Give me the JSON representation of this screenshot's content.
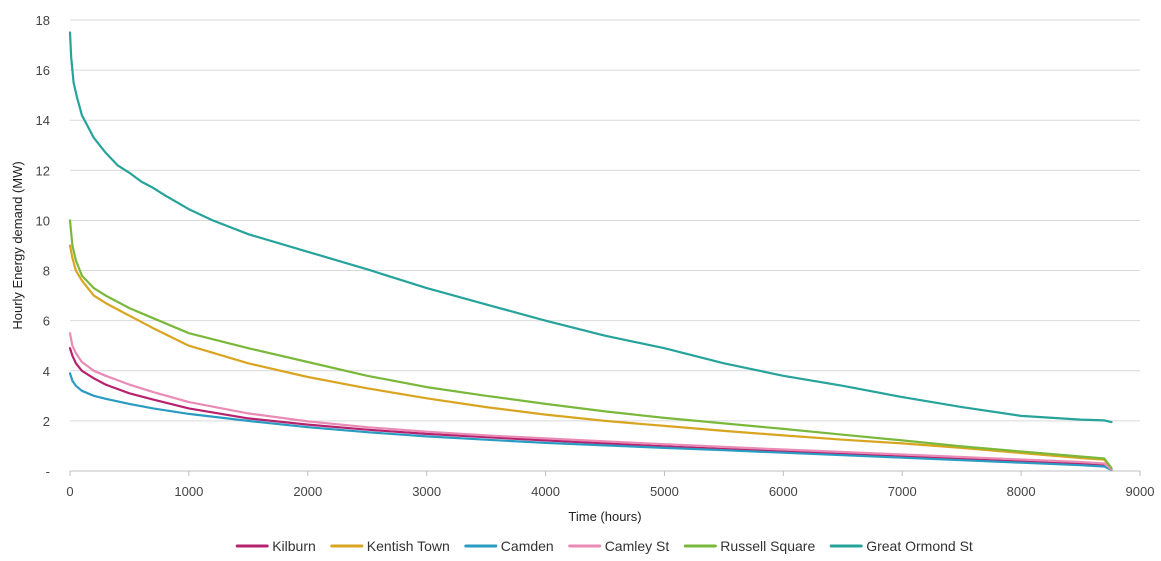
{
  "chart_data": {
    "type": "line",
    "title": "",
    "xlabel": "Time (hours)",
    "ylabel": "Hourly Energy demand (MW)",
    "xlim": [
      0,
      9000
    ],
    "ylim": [
      0,
      18
    ],
    "x_ticks": [
      0,
      1000,
      2000,
      3000,
      4000,
      5000,
      6000,
      7000,
      8000,
      9000
    ],
    "x_tick_labels": [
      "0",
      "1000",
      "2000",
      "3000",
      "4000",
      "5000",
      "6000",
      "7000",
      "8000",
      "9000"
    ],
    "y_ticks": [
      0,
      2,
      4,
      6,
      8,
      10,
      12,
      14,
      16,
      18
    ],
    "y_tick_labels": [
      "-",
      "2",
      "4",
      "6",
      "8",
      "10",
      "12",
      "14",
      "16",
      "18"
    ],
    "grid": "horizontal",
    "legend_position": "bottom",
    "series": [
      {
        "name": "Kilburn",
        "color": "#b5226e",
        "points": [
          [
            0,
            4.9
          ],
          [
            20,
            4.6
          ],
          [
            50,
            4.3
          ],
          [
            100,
            4.0
          ],
          [
            200,
            3.7
          ],
          [
            300,
            3.45
          ],
          [
            500,
            3.1
          ],
          [
            700,
            2.85
          ],
          [
            1000,
            2.5
          ],
          [
            1500,
            2.1
          ],
          [
            2000,
            1.85
          ],
          [
            2500,
            1.65
          ],
          [
            3000,
            1.48
          ],
          [
            3500,
            1.35
          ],
          [
            4000,
            1.22
          ],
          [
            4500,
            1.1
          ],
          [
            5000,
            0.98
          ],
          [
            5500,
            0.88
          ],
          [
            6000,
            0.78
          ],
          [
            6500,
            0.68
          ],
          [
            7000,
            0.58
          ],
          [
            7500,
            0.48
          ],
          [
            8000,
            0.38
          ],
          [
            8500,
            0.28
          ],
          [
            8700,
            0.22
          ],
          [
            8760,
            0.05
          ]
        ]
      },
      {
        "name": "Kentish Town",
        "color": "#d9a521",
        "points": [
          [
            0,
            9.0
          ],
          [
            20,
            8.5
          ],
          [
            50,
            8.0
          ],
          [
            100,
            7.6
          ],
          [
            200,
            7.0
          ],
          [
            300,
            6.7
          ],
          [
            500,
            6.2
          ],
          [
            700,
            5.7
          ],
          [
            1000,
            5.0
          ],
          [
            1500,
            4.3
          ],
          [
            2000,
            3.75
          ],
          [
            2500,
            3.3
          ],
          [
            3000,
            2.9
          ],
          [
            3500,
            2.55
          ],
          [
            4000,
            2.25
          ],
          [
            4500,
            2.0
          ],
          [
            5000,
            1.8
          ],
          [
            5500,
            1.6
          ],
          [
            6000,
            1.42
          ],
          [
            6500,
            1.25
          ],
          [
            7000,
            1.1
          ],
          [
            7500,
            0.92
          ],
          [
            8000,
            0.72
          ],
          [
            8500,
            0.52
          ],
          [
            8700,
            0.45
          ],
          [
            8760,
            0.1
          ]
        ]
      },
      {
        "name": "Camden",
        "color": "#2a9bc2",
        "points": [
          [
            0,
            3.9
          ],
          [
            20,
            3.6
          ],
          [
            50,
            3.4
          ],
          [
            100,
            3.2
          ],
          [
            200,
            3.0
          ],
          [
            300,
            2.88
          ],
          [
            500,
            2.68
          ],
          [
            700,
            2.5
          ],
          [
            1000,
            2.28
          ],
          [
            1500,
            2.0
          ],
          [
            2000,
            1.75
          ],
          [
            2500,
            1.55
          ],
          [
            3000,
            1.38
          ],
          [
            3500,
            1.25
          ],
          [
            4000,
            1.12
          ],
          [
            4500,
            1.02
          ],
          [
            5000,
            0.92
          ],
          [
            5500,
            0.83
          ],
          [
            6000,
            0.73
          ],
          [
            6500,
            0.63
          ],
          [
            7000,
            0.53
          ],
          [
            7500,
            0.43
          ],
          [
            8000,
            0.33
          ],
          [
            8500,
            0.23
          ],
          [
            8700,
            0.18
          ],
          [
            8760,
            0.04
          ]
        ]
      },
      {
        "name": "Camley St",
        "color": "#e98bb5",
        "points": [
          [
            0,
            5.5
          ],
          [
            20,
            5.0
          ],
          [
            50,
            4.7
          ],
          [
            100,
            4.35
          ],
          [
            200,
            4.0
          ],
          [
            300,
            3.8
          ],
          [
            500,
            3.45
          ],
          [
            700,
            3.15
          ],
          [
            1000,
            2.75
          ],
          [
            1500,
            2.3
          ],
          [
            2000,
            1.98
          ],
          [
            2500,
            1.75
          ],
          [
            3000,
            1.57
          ],
          [
            3500,
            1.42
          ],
          [
            4000,
            1.3
          ],
          [
            4500,
            1.18
          ],
          [
            5000,
            1.07
          ],
          [
            5500,
            0.96
          ],
          [
            6000,
            0.86
          ],
          [
            6500,
            0.76
          ],
          [
            7000,
            0.66
          ],
          [
            7500,
            0.56
          ],
          [
            8000,
            0.46
          ],
          [
            8500,
            0.36
          ],
          [
            8700,
            0.3
          ],
          [
            8760,
            0.06
          ]
        ]
      },
      {
        "name": "Russell Square",
        "color": "#7ab83b",
        "points": [
          [
            0,
            10.0
          ],
          [
            20,
            9.0
          ],
          [
            50,
            8.4
          ],
          [
            100,
            7.8
          ],
          [
            200,
            7.3
          ],
          [
            300,
            7.0
          ],
          [
            500,
            6.5
          ],
          [
            700,
            6.1
          ],
          [
            1000,
            5.5
          ],
          [
            1500,
            4.9
          ],
          [
            2000,
            4.35
          ],
          [
            2500,
            3.8
          ],
          [
            3000,
            3.35
          ],
          [
            3500,
            3.0
          ],
          [
            4000,
            2.68
          ],
          [
            4500,
            2.38
          ],
          [
            5000,
            2.12
          ],
          [
            5500,
            1.9
          ],
          [
            6000,
            1.68
          ],
          [
            6500,
            1.45
          ],
          [
            7000,
            1.22
          ],
          [
            7500,
            0.98
          ],
          [
            8000,
            0.78
          ],
          [
            8500,
            0.58
          ],
          [
            8700,
            0.5
          ],
          [
            8760,
            0.12
          ]
        ]
      },
      {
        "name": "Great Ormond St",
        "color": "#26a39a",
        "points": [
          [
            0,
            17.5
          ],
          [
            10,
            16.5
          ],
          [
            30,
            15.5
          ],
          [
            60,
            14.9
          ],
          [
            100,
            14.2
          ],
          [
            200,
            13.3
          ],
          [
            300,
            12.7
          ],
          [
            400,
            12.2
          ],
          [
            500,
            11.9
          ],
          [
            600,
            11.55
          ],
          [
            700,
            11.3
          ],
          [
            800,
            11.0
          ],
          [
            1000,
            10.45
          ],
          [
            1200,
            10.0
          ],
          [
            1500,
            9.45
          ],
          [
            2000,
            8.75
          ],
          [
            2500,
            8.05
          ],
          [
            3000,
            7.3
          ],
          [
            3500,
            6.65
          ],
          [
            4000,
            6.0
          ],
          [
            4500,
            5.4
          ],
          [
            5000,
            4.9
          ],
          [
            5500,
            4.3
          ],
          [
            6000,
            3.8
          ],
          [
            6500,
            3.4
          ],
          [
            7000,
            2.95
          ],
          [
            7500,
            2.55
          ],
          [
            8000,
            2.2
          ],
          [
            8500,
            2.05
          ],
          [
            8700,
            2.02
          ],
          [
            8760,
            1.95
          ]
        ]
      }
    ]
  }
}
